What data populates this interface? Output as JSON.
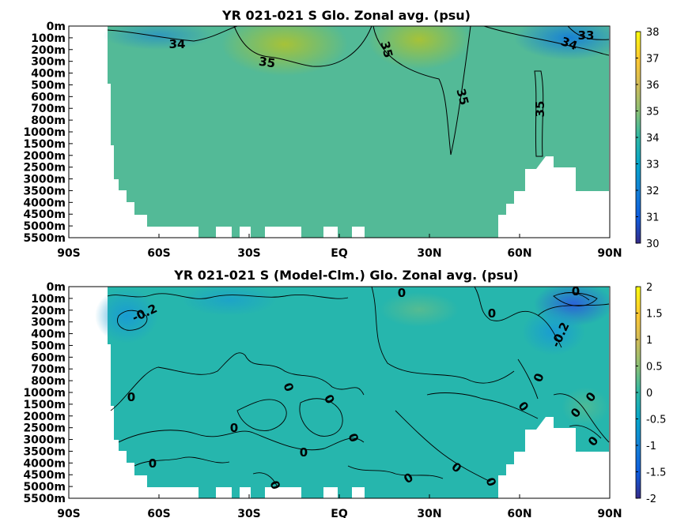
{
  "chart_data": [
    {
      "type": "heatmap",
      "title": "YR 021-021 S Glo. Zonal avg. (psu)",
      "xlabel": "",
      "ylabel": "",
      "x_ticks": [
        "90S",
        "60S",
        "30S",
        "EQ",
        "30N",
        "60N",
        "90N"
      ],
      "y_ticks": [
        "0m",
        "100m",
        "200m",
        "300m",
        "400m",
        "500m",
        "600m",
        "700m",
        "800m",
        "1000m",
        "1500m",
        "2000m",
        "2500m",
        "3000m",
        "3500m",
        "4000m",
        "4500m",
        "5000m",
        "5500m"
      ],
      "colorbar": {
        "min": 30,
        "max": 38,
        "ticks": [
          "30",
          "31",
          "32",
          "33",
          "34",
          "35",
          "36",
          "37",
          "38"
        ],
        "colormap": "parula"
      },
      "contour_labels": [
        "34",
        "35",
        "35",
        "35",
        "35",
        "34",
        "33"
      ],
      "grid": false
    },
    {
      "type": "heatmap",
      "title": "YR 021-021 S (Model-Clm.) Glo. Zonal avg. (psu)",
      "xlabel": "",
      "ylabel": "",
      "x_ticks": [
        "90S",
        "60S",
        "30S",
        "EQ",
        "30N",
        "60N",
        "90N"
      ],
      "y_ticks": [
        "0m",
        "100m",
        "200m",
        "300m",
        "400m",
        "500m",
        "600m",
        "700m",
        "800m",
        "1000m",
        "1500m",
        "2000m",
        "2500m",
        "3000m",
        "3500m",
        "4000m",
        "4500m",
        "5000m",
        "5500m"
      ],
      "colorbar": {
        "min": -2,
        "max": 2,
        "ticks": [
          "-2",
          "-1.5",
          "-1",
          "-0.5",
          "0",
          "0.5",
          "1",
          "1.5",
          "2"
        ],
        "colormap": "parula"
      },
      "contour_labels": [
        "-0.2",
        "0",
        "0",
        "0",
        "0",
        "0",
        "0",
        "0",
        "0",
        "0",
        "0",
        "0",
        "0",
        "0",
        "0",
        "0",
        "0",
        "-0.2",
        "0",
        "0",
        "0"
      ],
      "grid": false
    }
  ]
}
